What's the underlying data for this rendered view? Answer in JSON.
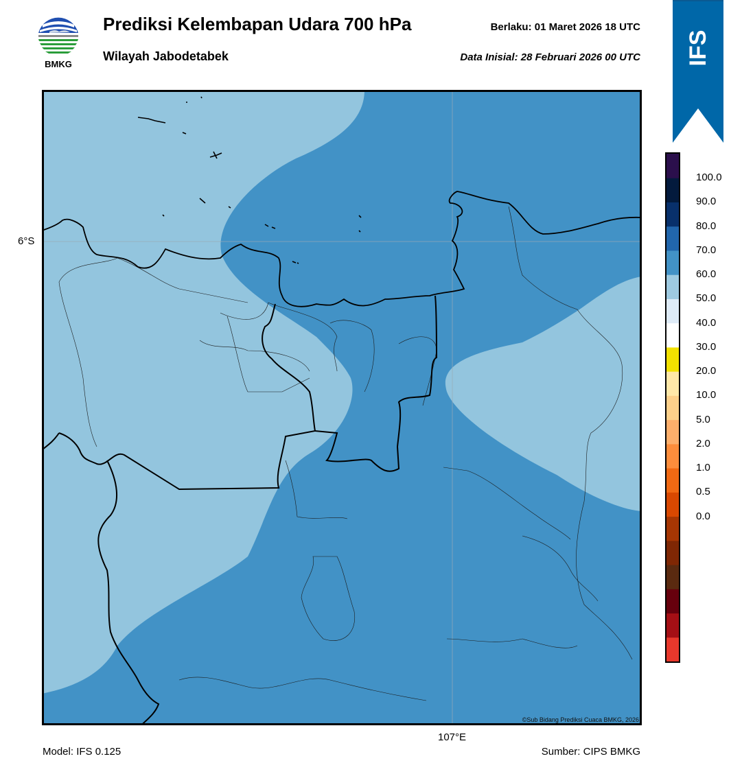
{
  "header": {
    "title": "Prediksi Kelembapan Udara 700 hPa",
    "subtitle": "Wilayah Jabodetabek",
    "valid_time": "Berlaku:  01 Maret 2026 18 UTC",
    "init_time": "Data Inisial:  28 Februari 2026 00 UTC"
  },
  "logo": {
    "text": "BMKG",
    "icon": "bmkg-logo-icon"
  },
  "ribbon": {
    "text": "IFS",
    "color": "#0067a8"
  },
  "map": {
    "lat_label": "6°S",
    "lon_label": "107°E",
    "credit": "©Sub Bidang Prediksi Cuaca BMKG, 2026",
    "fill_colors": {
      "band_60_70": "#93c5de",
      "band_70_80": "#4292c6"
    }
  },
  "colorbar": {
    "ticks": [
      "100.0",
      "90.0",
      "80.0",
      "70.0",
      "60.0",
      "50.0",
      "40.0",
      "30.0",
      "20.0",
      "10.0",
      "5.0",
      "2.0",
      "1.0",
      "0.5",
      "0.0"
    ],
    "colors": [
      "#e8382c",
      "#a50f15",
      "#67000d",
      "#5a2a10",
      "#7f2704",
      "#a63603",
      "#d94801",
      "#f16913",
      "#fd8d3c",
      "#fdae6b",
      "#fdd08a",
      "#ffe8a8",
      "#f2e100",
      "#ffffff",
      "#deebf7",
      "#9ecae1",
      "#4292c6",
      "#2166ac",
      "#08306b",
      "#031a3d",
      "#2b0f4c"
    ]
  },
  "footer": {
    "model": "Model: IFS 0.125",
    "source": "Sumber: CIPS BMKG"
  }
}
